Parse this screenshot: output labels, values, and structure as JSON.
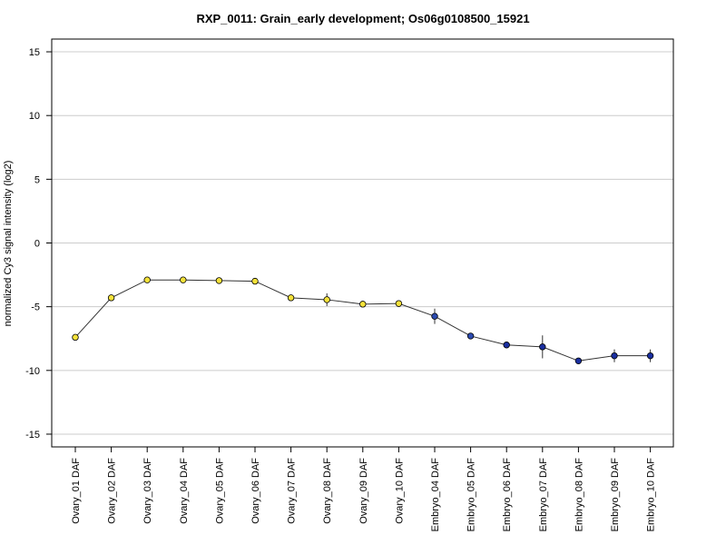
{
  "chart_data": {
    "type": "line",
    "title": "RXP_0011: Grain_early development; Os06g0108500_15921",
    "xlabel": "",
    "ylabel": "normalized Cy3 signal intensity (log2)",
    "ylim": [
      -16,
      16
    ],
    "yticks": [
      15,
      10,
      5,
      0,
      -5,
      -10,
      -15
    ],
    "grid": true,
    "categories": [
      "Ovary_01 DAF",
      "Ovary_02 DAF",
      "Ovary_03 DAF",
      "Ovary_04 DAF",
      "Ovary_05 DAF",
      "Ovary_06 DAF",
      "Ovary_07 DAF",
      "Ovary_08 DAF",
      "Ovary_09 DAF",
      "Ovary_10 DAF",
      "Embryo_04 DAF",
      "Embryo_05 DAF",
      "Embryo_06 DAF",
      "Embryo_07 DAF",
      "Embryo_08 DAF",
      "Embryo_09 DAF",
      "Embryo_10 DAF"
    ],
    "series": [
      {
        "values": [
          -7.4,
          -4.3,
          -2.9,
          -2.9,
          -2.95,
          -3.0,
          -4.3,
          -4.45,
          -4.8,
          -4.75,
          -5.75,
          -7.3,
          -8.0,
          -8.15,
          -9.25,
          -8.85,
          -8.85
        ],
        "errors": [
          0.2,
          0.25,
          0.2,
          0.15,
          0.15,
          0.15,
          0.2,
          0.5,
          0.15,
          0.2,
          0.6,
          0.2,
          0.15,
          0.9,
          0.15,
          0.5,
          0.5
        ],
        "marker_colors": [
          "#f5e23a",
          "#f5e23a",
          "#f5e23a",
          "#f5e23a",
          "#f5e23a",
          "#f5e23a",
          "#f5e23a",
          "#f5e23a",
          "#f5e23a",
          "#f5e23a",
          "#2c4bb0",
          "#2c4bb0",
          "#1a2fa0",
          "#1a2fa0",
          "#1a2fa0",
          "#1a2fa0",
          "#1a2fa0"
        ]
      }
    ]
  },
  "colors": {
    "line": "#333333",
    "grid": "#cccccc",
    "axis": "#000000",
    "ovary_marker": "#f5e23a",
    "embryo_marker": "#1a2fa0"
  }
}
